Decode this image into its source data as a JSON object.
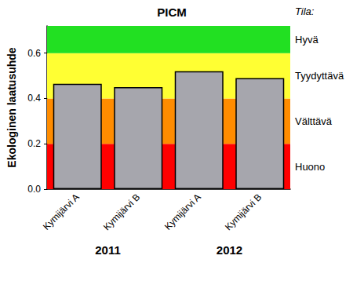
{
  "chart_data": {
    "type": "bar",
    "title": "PICM",
    "ylabel": "Ekologinen laatusuhde",
    "categories": [
      "Kymijärvi A",
      "Kymijärvi B",
      "Kymijärvi A",
      "Kymijärvi B"
    ],
    "values": [
      0.465,
      0.45,
      0.52,
      0.49
    ],
    "color": "#a6a6ad",
    "ylim": [
      0,
      0.72
    ],
    "yticks": [
      {
        "value": 0,
        "label": "0.0"
      },
      0.2,
      0.4,
      0.6
    ],
    "grid": false,
    "groups": [
      {
        "label": "2011",
        "size": 2
      },
      {
        "label": "2012",
        "size": 2
      }
    ],
    "band_title": "Tila:",
    "bands": [
      {
        "from": 0,
        "to": 0.2,
        "label": "Huono",
        "color": "#ff0000"
      },
      {
        "from": 0.2,
        "to": 0.4,
        "label": "Välttävä",
        "color": "#ff8c00"
      },
      {
        "from": 0.4,
        "to": 0.6,
        "label": "Tyydyttävä",
        "color": "#ffff33"
      },
      {
        "from": 0.6,
        "to": 0.72,
        "label": "Hyvä",
        "color": "#22e022"
      }
    ]
  }
}
